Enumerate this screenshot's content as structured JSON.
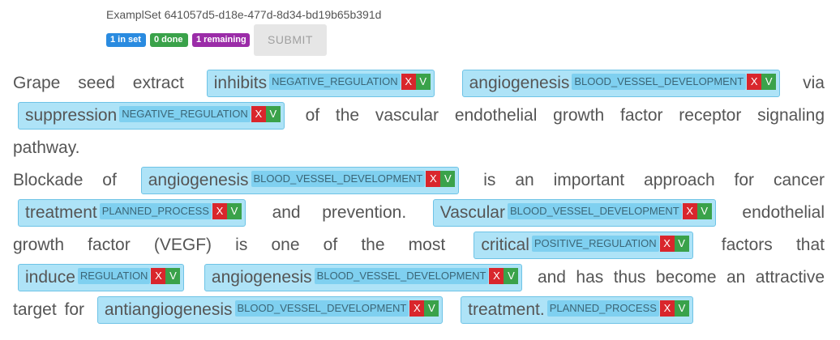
{
  "header": {
    "set_title": "ExamplSet 641057d5-d18e-477d-8d34-bd19b65b391d",
    "badges": [
      {
        "label": "1 in set",
        "color": "#2a8be0"
      },
      {
        "label": "0 done",
        "color": "#3aa24a"
      },
      {
        "label": "1 remaining",
        "color": "#9b2ca8"
      }
    ],
    "submit_label": "SUBMIT"
  },
  "controls": {
    "reject_label": "X",
    "accept_label": "V"
  },
  "paragraphs": [
    [
      {
        "t": "Grape seed extract"
      },
      {
        "w": "inhibits",
        "l": "NEGATIVE_REGULATION"
      },
      {
        "w": "angiogenesis",
        "l": "BLOOD_VESSEL_DEVELOPMENT"
      },
      {
        "t": "via"
      },
      {
        "w": "suppression",
        "l": "NEGATIVE_REGULATION"
      },
      {
        "t": "of the vascular endothelial growth factor receptor signaling pathway."
      }
    ],
    [
      {
        "t": "Blockade of"
      },
      {
        "w": "angiogenesis",
        "l": "BLOOD_VESSEL_DEVELOPMENT"
      },
      {
        "t": "is an important approach for cancer"
      },
      {
        "w": "treatment",
        "l": "PLANNED_PROCESS"
      },
      {
        "t": "and prevention."
      },
      {
        "w": "Vascular",
        "l": "BLOOD_VESSEL_DEVELOPMENT"
      },
      {
        "t": "endothelial growth factor (VEGF) is one of the most"
      },
      {
        "w": "critical",
        "l": "POSITIVE_REGULATION"
      },
      {
        "t": "factors that"
      },
      {
        "w": "induce",
        "l": "REGULATION"
      },
      {
        "w": "angiogenesis",
        "l": "BLOOD_VESSEL_DEVELOPMENT"
      },
      {
        "t": "and has thus become an attractive target for"
      },
      {
        "w": "antiangiogenesis",
        "l": "BLOOD_VESSEL_DEVELOPMENT"
      },
      {
        "w": "treatment.",
        "l": "PLANNED_PROCESS"
      }
    ]
  ]
}
